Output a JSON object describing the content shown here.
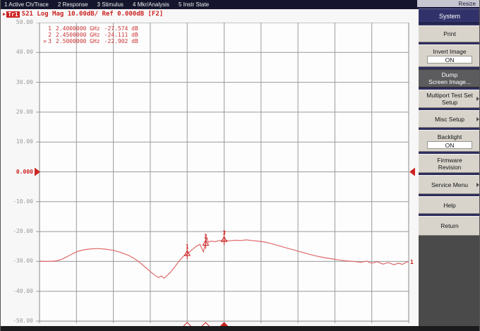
{
  "menubar": {
    "items": [
      "1 Active Ch/Trace",
      "2 Response",
      "3 Stimulus",
      "4 Mkr/Analysis",
      "5 Instr State"
    ],
    "resize_label": "Resize"
  },
  "trace_info": {
    "arrow": "▶",
    "badge": "Tr1",
    "text": "S21 Log Mag 10.00dB/ Ref 0.000dB [F2]"
  },
  "marker_table": [
    {
      "sel": "",
      "num": "1",
      "freq": "2.4000000 GHz",
      "value": "-27.574 dB"
    },
    {
      "sel": "",
      "num": "2",
      "freq": "2.4500000 GHz",
      "value": "-24.111 dB"
    },
    {
      "sel": ">",
      "num": "3",
      "freq": "2.5000000 GHz",
      "value": "-22.902 dB"
    }
  ],
  "y_axis": {
    "labels": [
      "50.00",
      "40.00",
      "30.00",
      "20.00",
      "10.00",
      "0.000",
      "-10.00",
      "-20.00",
      "-30.00",
      "-40.00",
      "-50.00"
    ],
    "ref_index": 5
  },
  "sidebar": {
    "title": "System",
    "buttons": [
      {
        "lines": [
          "Print"
        ]
      },
      {
        "lines": [
          "Invert Image"
        ],
        "state": "ON"
      },
      {
        "lines": [
          "Dump",
          "Screen Image..."
        ],
        "pressed": true
      },
      {
        "lines": [
          "Multiport Test Set",
          "Setup"
        ],
        "arrow": true
      },
      {
        "lines": [
          "Misc Setup"
        ],
        "arrow": true
      },
      {
        "lines": [
          "Backlight"
        ],
        "state": "ON"
      },
      {
        "lines": [
          "Firmware",
          "Revision"
        ]
      },
      {
        "lines": [
          "Service Menu"
        ],
        "arrow": true
      },
      {
        "lines": [
          "Help"
        ]
      },
      {
        "lines": [
          "Return"
        ]
      }
    ]
  },
  "colors": {
    "trace": "#e06a6a",
    "marker_red": "#cc2222",
    "grid_line": "#9a9a9a",
    "grid_border": "#8a8a8a",
    "menubar_bg": "#15152d",
    "sidebar_button_bg": "#d8d4cc",
    "sidebar_header_bg": "#32326b",
    "pressed_button_bg": "#5c5c5e"
  },
  "chart_data": {
    "type": "line",
    "title": "S21 Log Mag",
    "ylabel": "dB",
    "ylim": [
      -50,
      50
    ],
    "y_per_div": 10,
    "x_ghz_range": [
      2.0,
      3.0
    ],
    "ref_level_db": 0.0,
    "trace_end_label": "1",
    "grid": true,
    "markers": [
      {
        "num": "1",
        "freq_ghz": 2.4,
        "db": -27.574,
        "active": false
      },
      {
        "num": "2",
        "freq_ghz": 2.45,
        "db": -24.111,
        "active": false
      },
      {
        "num": "3",
        "freq_ghz": 2.5,
        "db": -22.902,
        "active": true
      }
    ],
    "series": [
      {
        "name": "Tr1 S21",
        "points": [
          [
            2.0,
            -29.9
          ],
          [
            2.015,
            -30.0
          ],
          [
            2.03,
            -30.0
          ],
          [
            2.045,
            -29.8
          ],
          [
            2.06,
            -29.3
          ],
          [
            2.075,
            -28.4
          ],
          [
            2.09,
            -27.4
          ],
          [
            2.105,
            -26.6
          ],
          [
            2.12,
            -26.1
          ],
          [
            2.14,
            -25.8
          ],
          [
            2.16,
            -25.7
          ],
          [
            2.18,
            -25.9
          ],
          [
            2.2,
            -26.3
          ],
          [
            2.22,
            -27.0
          ],
          [
            2.24,
            -27.9
          ],
          [
            2.255,
            -28.9
          ],
          [
            2.27,
            -30.2
          ],
          [
            2.285,
            -31.8
          ],
          [
            2.3,
            -33.4
          ],
          [
            2.312,
            -34.6
          ],
          [
            2.322,
            -35.4
          ],
          [
            2.33,
            -34.9
          ],
          [
            2.337,
            -35.6
          ],
          [
            2.345,
            -34.8
          ],
          [
            2.355,
            -33.6
          ],
          [
            2.366,
            -31.9
          ],
          [
            2.378,
            -29.9
          ],
          [
            2.39,
            -28.2
          ],
          [
            2.4,
            -27.574
          ],
          [
            2.412,
            -26.2
          ],
          [
            2.425,
            -24.9
          ],
          [
            2.435,
            -24.3
          ],
          [
            2.44,
            -25.8
          ],
          [
            2.444,
            -26.8
          ],
          [
            2.448,
            -24.6
          ],
          [
            2.45,
            -24.111
          ],
          [
            2.453,
            -21.8
          ],
          [
            2.457,
            -23.6
          ],
          [
            2.465,
            -23.2
          ],
          [
            2.475,
            -23.4
          ],
          [
            2.488,
            -23.0
          ],
          [
            2.5,
            -22.902
          ],
          [
            2.515,
            -23.1
          ],
          [
            2.53,
            -22.9
          ],
          [
            2.545,
            -23.0
          ],
          [
            2.56,
            -22.8
          ],
          [
            2.575,
            -23.0
          ],
          [
            2.59,
            -23.2
          ],
          [
            2.61,
            -23.5
          ],
          [
            2.63,
            -24.1
          ],
          [
            2.65,
            -24.8
          ],
          [
            2.67,
            -25.5
          ],
          [
            2.69,
            -26.2
          ],
          [
            2.71,
            -26.9
          ],
          [
            2.73,
            -27.6
          ],
          [
            2.75,
            -28.2
          ],
          [
            2.77,
            -28.7
          ],
          [
            2.79,
            -29.1
          ],
          [
            2.81,
            -29.5
          ],
          [
            2.83,
            -29.8
          ],
          [
            2.85,
            -30.0
          ],
          [
            2.87,
            -30.3
          ],
          [
            2.885,
            -29.9
          ],
          [
            2.9,
            -30.6
          ],
          [
            2.915,
            -30.1
          ],
          [
            2.93,
            -30.9
          ],
          [
            2.945,
            -30.4
          ],
          [
            2.96,
            -31.1
          ],
          [
            2.972,
            -30.6
          ],
          [
            2.983,
            -31.0
          ],
          [
            2.993,
            -30.3
          ],
          [
            3.0,
            -30.1
          ]
        ]
      }
    ]
  }
}
